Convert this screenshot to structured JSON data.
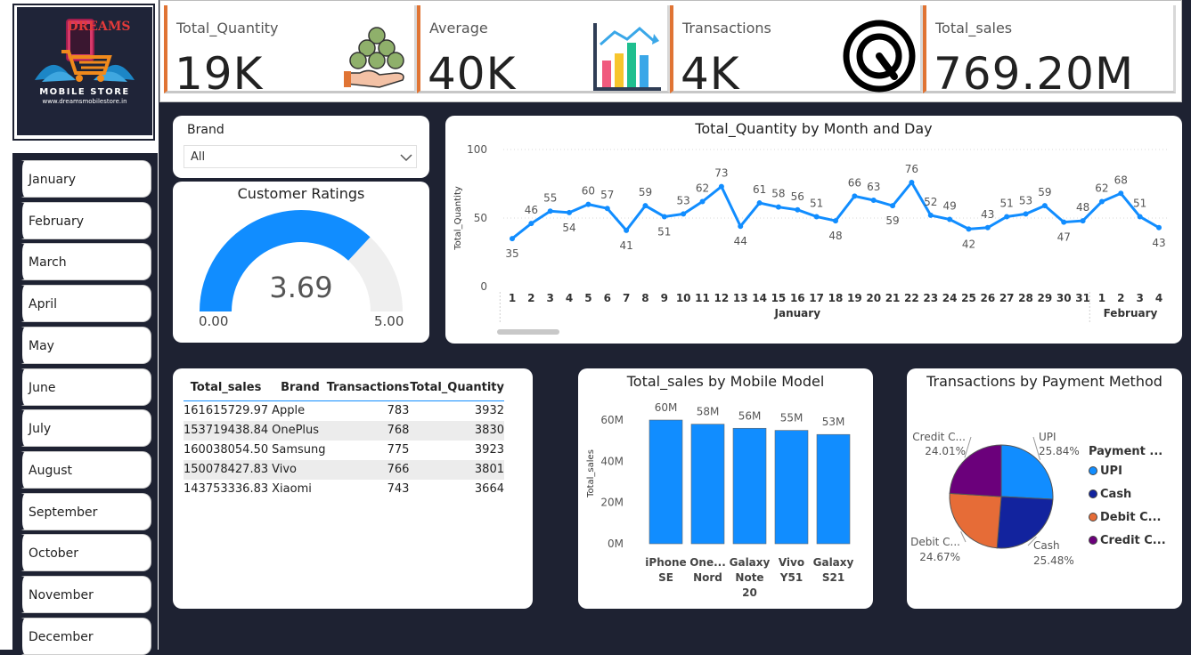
{
  "logo": {
    "brand": "DREAMS",
    "name": "MOBILE STORE",
    "url": "www.dreamsmobilestore.in"
  },
  "months": [
    "January",
    "February",
    "March",
    "April",
    "May",
    "June",
    "July",
    "August",
    "September",
    "October",
    "November",
    "December"
  ],
  "kpis": [
    {
      "title": "Total_Quantity",
      "value": "19K",
      "icon": "money-bags-hand-icon"
    },
    {
      "title": "Average",
      "value": "40K",
      "icon": "bar-chart-growth-icon"
    },
    {
      "title": "Transactions",
      "value": "4K",
      "icon": "gauge-dial-icon"
    },
    {
      "title": "Total_sales",
      "value": "769.20M",
      "icon": ""
    }
  ],
  "brand_filter": {
    "label": "Brand",
    "value": "All"
  },
  "gauge": {
    "title": "Customer Ratings",
    "value": "3.69",
    "min": "0.00",
    "max": "5.00",
    "fraction": 0.738,
    "color": "#118dff"
  },
  "table": {
    "headers": [
      "Total_sales",
      "Brand",
      "Transactions",
      "Total_Quantity"
    ],
    "rows": [
      [
        "161615729.97",
        "Apple",
        "783",
        "3932"
      ],
      [
        "153719438.84",
        "OnePlus",
        "768",
        "3830"
      ],
      [
        "160038054.50",
        "Samsung",
        "775",
        "3923"
      ],
      [
        "150078427.83",
        "Vivo",
        "766",
        "3801"
      ],
      [
        "143753336.83",
        "Xiaomi",
        "743",
        "3664"
      ]
    ]
  },
  "chart_data": [
    {
      "type": "line",
      "title": "Total_Quantity by Month and Day",
      "ylabel": "Total_Quantity",
      "ylim": [
        0,
        100
      ],
      "yticks": [
        "0",
        "50",
        "100"
      ],
      "x": [
        "1",
        "2",
        "3",
        "4",
        "5",
        "6",
        "7",
        "8",
        "9",
        "10",
        "11",
        "12",
        "13",
        "14",
        "15",
        "16",
        "17",
        "18",
        "19",
        "20",
        "21",
        "22",
        "23",
        "24",
        "25",
        "26",
        "27",
        "28",
        "29",
        "30",
        "31",
        "1",
        "2",
        "3",
        "4"
      ],
      "groups": [
        {
          "label": "January",
          "count": 31
        },
        {
          "label": "February",
          "count": 4
        }
      ],
      "values": [
        35,
        46,
        55,
        54,
        60,
        57,
        41,
        59,
        51,
        53,
        62,
        73,
        44,
        61,
        58,
        56,
        51,
        48,
        66,
        63,
        59,
        76,
        52,
        49,
        42,
        43,
        51,
        53,
        59,
        47,
        48,
        62,
        68,
        51,
        43
      ],
      "color": "#118dff",
      "grid": true
    },
    {
      "type": "bar",
      "title": "Total_sales by Mobile Model",
      "ylabel": "Total_sales",
      "ylim": [
        0,
        60
      ],
      "yticks": [
        "0M",
        "20M",
        "40M",
        "60M"
      ],
      "categories": [
        "iPhone SE",
        "One... Nord",
        "Galaxy Note 20",
        "Vivo Y51",
        "Galaxy S21"
      ],
      "category_lines": [
        [
          "iPhone",
          "SE"
        ],
        [
          "One...",
          "Nord"
        ],
        [
          "Galaxy",
          "Note",
          "20"
        ],
        [
          "Vivo",
          "Y51"
        ],
        [
          "Galaxy",
          "S21"
        ]
      ],
      "values": [
        60,
        58,
        56,
        55,
        53
      ],
      "labels": [
        "60M",
        "58M",
        "56M",
        "55M",
        "53M"
      ],
      "color": "#118dff"
    },
    {
      "type": "pie",
      "title": "Transactions by Payment Method",
      "legend_title": "Payment ...",
      "legend_position": "right",
      "slices": [
        {
          "name": "UPI",
          "legend": "UPI",
          "label": "UPI",
          "value": 25.84,
          "pct": "25.84%",
          "color": "#118dff"
        },
        {
          "name": "Cash",
          "legend": "Cash",
          "label": "Cash",
          "value": 25.48,
          "pct": "25.48%",
          "color": "#12239e"
        },
        {
          "name": "Debit Card",
          "legend": "Debit C...",
          "label": "Debit C...",
          "value": 24.67,
          "pct": "24.67%",
          "color": "#e66c37"
        },
        {
          "name": "Credit Card",
          "legend": "Credit C...",
          "label": "Credit C...",
          "value": 24.01,
          "pct": "24.01%",
          "color": "#6b007b"
        }
      ]
    }
  ]
}
